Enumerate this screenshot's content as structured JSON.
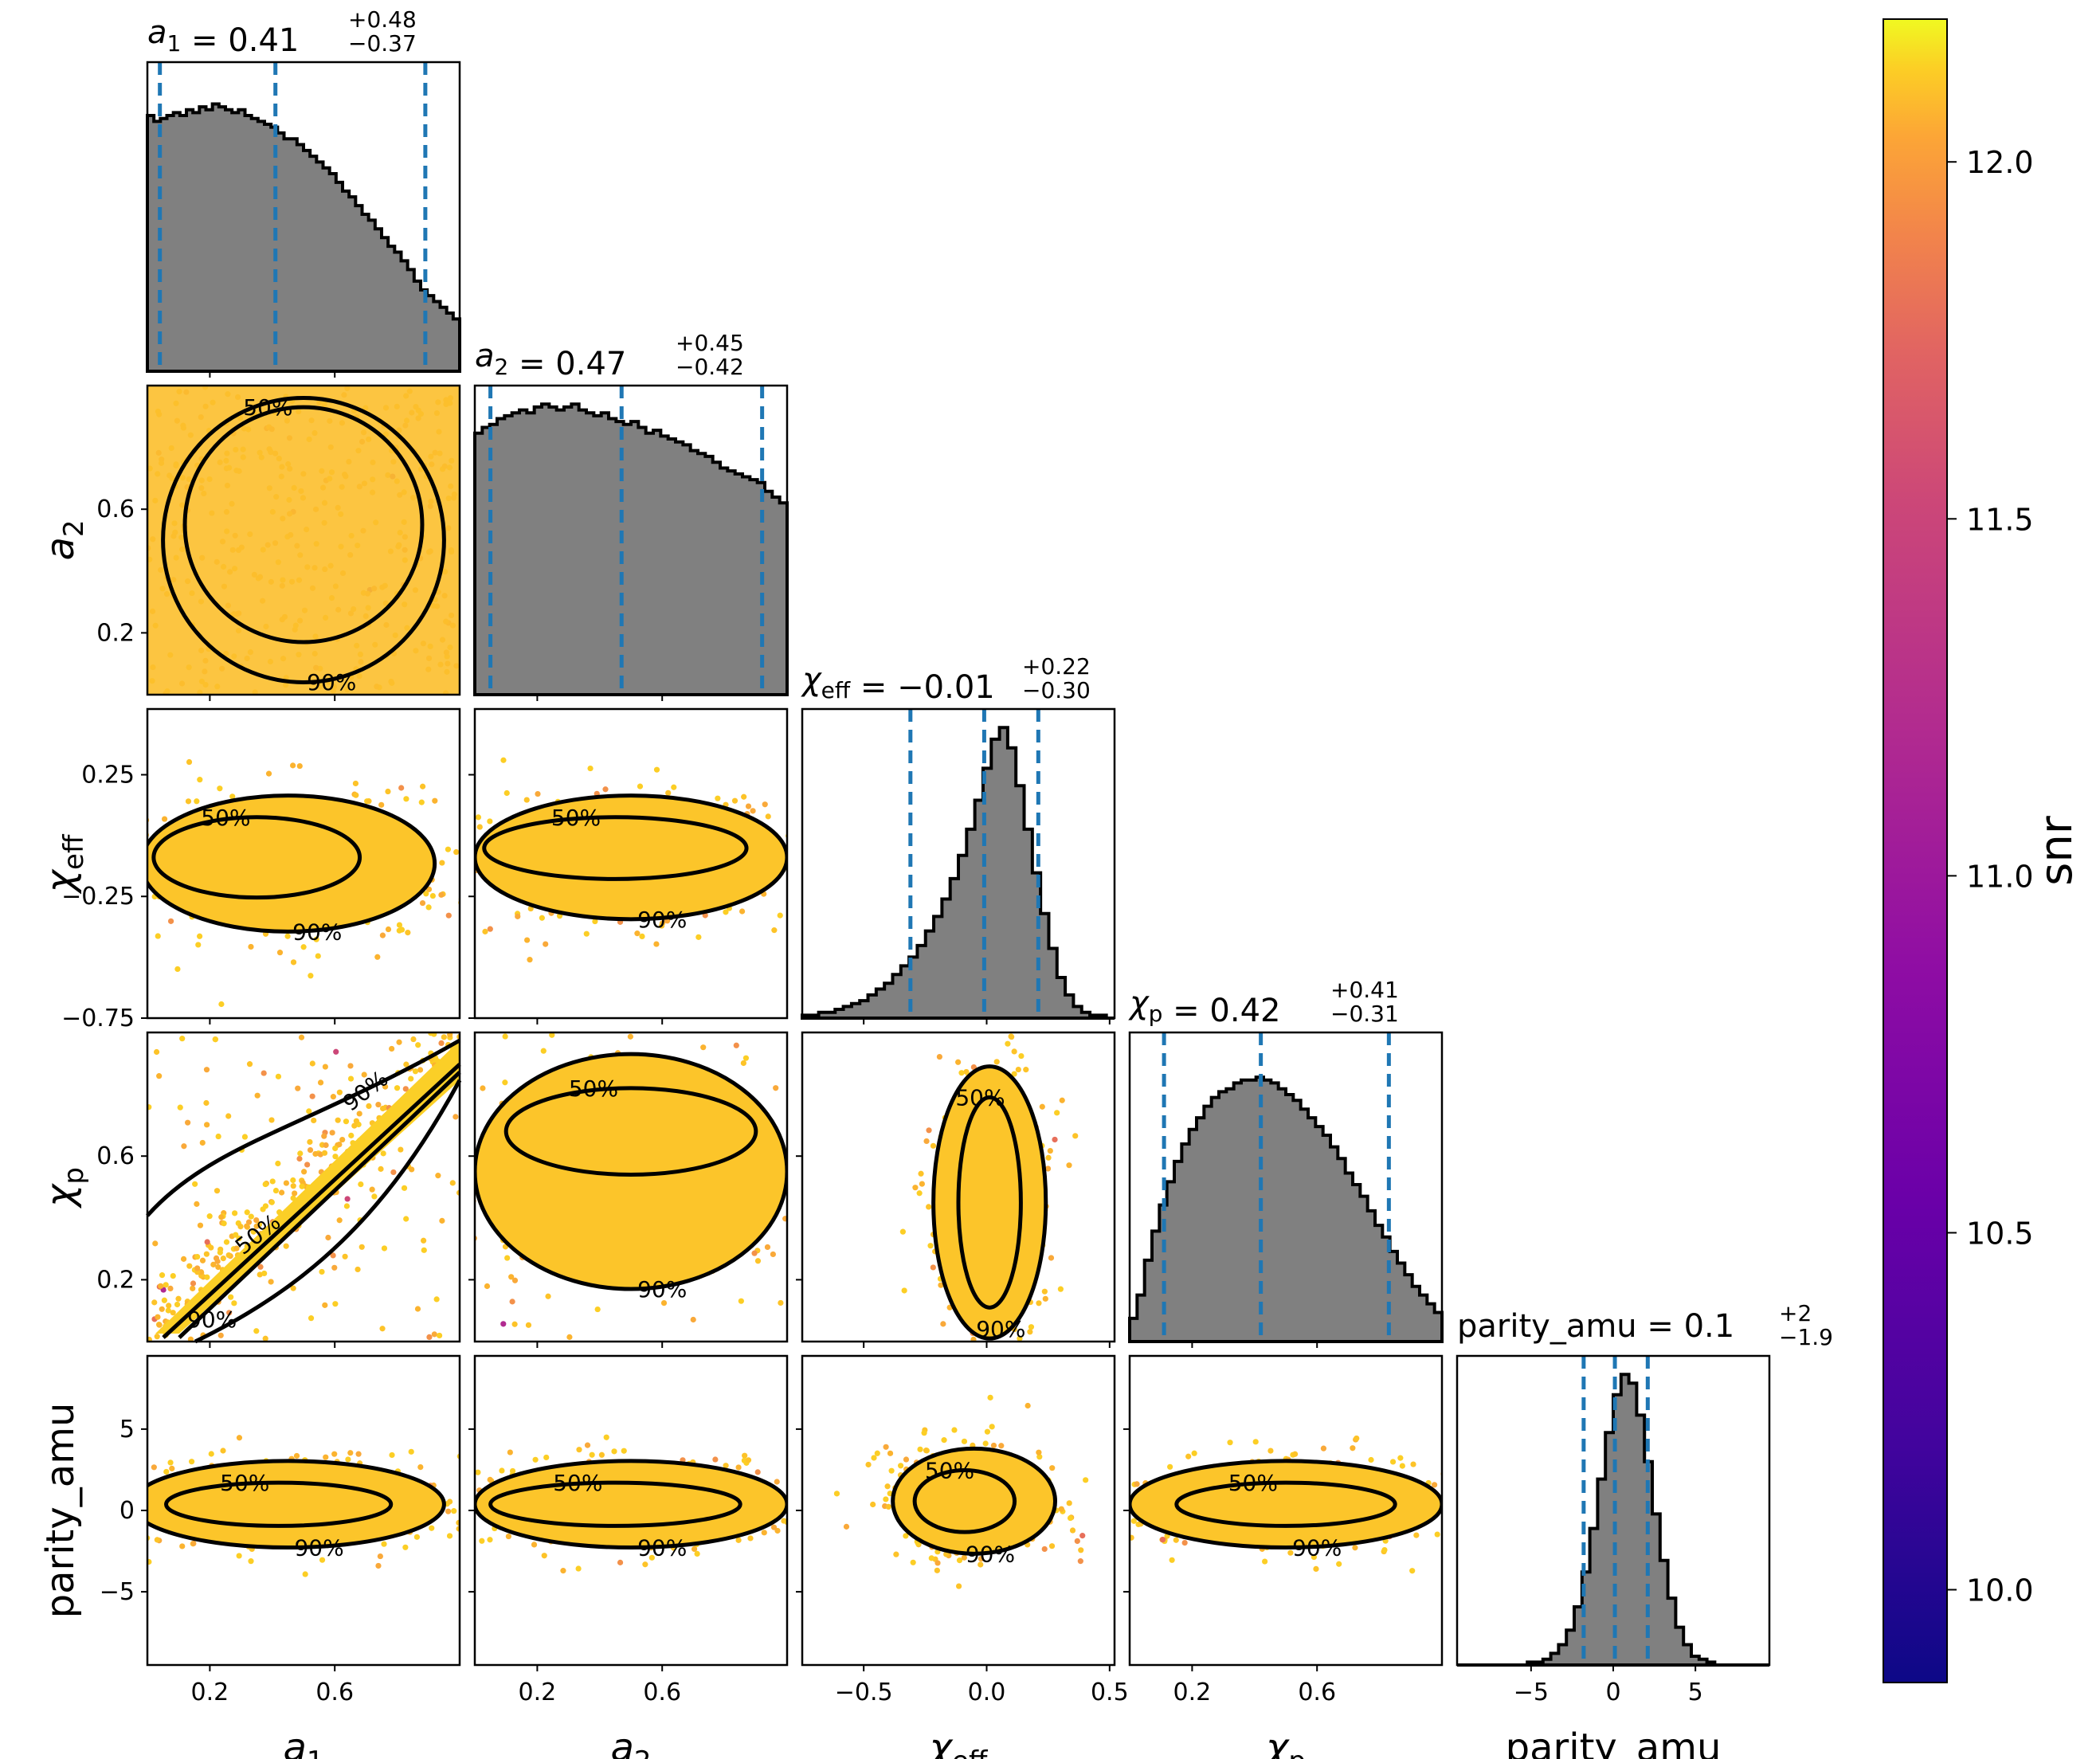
{
  "chart_data": {
    "type": "scatter",
    "kind": "corner-plot",
    "parameters": [
      {
        "id": "a1",
        "label": "a",
        "sub": "1",
        "italic": true,
        "median": 0.41,
        "plus": "+0.48",
        "minus": "−0.37",
        "median_text": "0.41",
        "range": [
          0.0,
          1.0
        ],
        "ticks": [
          0.2,
          0.6
        ],
        "tick_labels": [
          "0.2",
          "0.6"
        ],
        "quantiles": [
          0.04,
          0.41,
          0.89
        ]
      },
      {
        "id": "a2",
        "label": "a",
        "sub": "2",
        "italic": true,
        "median": 0.47,
        "plus": "+0.45",
        "minus": "−0.42",
        "median_text": "0.47",
        "range": [
          0.0,
          1.0
        ],
        "ticks": [
          0.2,
          0.6
        ],
        "tick_labels": [
          "0.2",
          "0.6"
        ],
        "quantiles": [
          0.05,
          0.47,
          0.92
        ]
      },
      {
        "id": "chi_eff",
        "label": "χ",
        "sub": "eff",
        "italic": true,
        "median": -0.01,
        "plus": "+0.22",
        "minus": "−0.30",
        "median_text": "−0.01",
        "range": [
          -0.75,
          0.52
        ],
        "ticks": [
          -0.5,
          0.0,
          0.5
        ],
        "tick_labels": [
          "−0.5",
          "0.0",
          "0.5"
        ],
        "y_ticks": [
          0.25,
          -0.25,
          -0.75
        ],
        "y_tick_labels": [
          "0.25",
          "−0.25",
          "−0.75"
        ],
        "quantiles": [
          -0.31,
          -0.01,
          0.21
        ]
      },
      {
        "id": "chi_p",
        "label": "χ",
        "sub": "p",
        "italic": true,
        "median": 0.42,
        "plus": "+0.41",
        "minus": "−0.31",
        "median_text": "0.42",
        "range": [
          0.0,
          1.0
        ],
        "ticks": [
          0.2,
          0.6
        ],
        "tick_labels": [
          "0.2",
          "0.6"
        ],
        "quantiles": [
          0.11,
          0.42,
          0.83
        ]
      },
      {
        "id": "parity_amu",
        "label": "parity_amu",
        "sub": "",
        "italic": false,
        "median": 0.1,
        "plus": "+2",
        "minus": "−1.9",
        "median_text": "0.1",
        "range": [
          -9.5,
          9.5
        ],
        "ticks": [
          -5,
          0,
          5
        ],
        "tick_labels": [
          "−5",
          "0",
          "5"
        ],
        "quantiles": [
          -1.8,
          0.1,
          2.1
        ]
      }
    ],
    "histogram_shapes": {
      "a1": [
        0.88,
        0.86,
        0.87,
        0.88,
        0.89,
        0.88,
        0.9,
        0.89,
        0.91,
        0.9,
        0.92,
        0.91,
        0.9,
        0.89,
        0.9,
        0.88,
        0.87,
        0.86,
        0.85,
        0.84,
        0.82,
        0.8,
        0.8,
        0.78,
        0.76,
        0.74,
        0.72,
        0.7,
        0.68,
        0.65,
        0.62,
        0.6,
        0.57,
        0.54,
        0.52,
        0.49,
        0.46,
        0.43,
        0.41,
        0.38,
        0.35,
        0.31,
        0.28,
        0.26,
        0.24,
        0.22,
        0.2,
        0.18
      ],
      "a2": [
        0.9,
        0.92,
        0.93,
        0.95,
        0.96,
        0.97,
        0.98,
        0.97,
        0.99,
        1.0,
        0.99,
        0.98,
        0.99,
        1.0,
        0.98,
        0.97,
        0.96,
        0.97,
        0.95,
        0.94,
        0.93,
        0.94,
        0.92,
        0.9,
        0.91,
        0.89,
        0.88,
        0.87,
        0.86,
        0.84,
        0.83,
        0.82,
        0.8,
        0.78,
        0.77,
        0.76,
        0.75,
        0.74,
        0.73,
        0.7,
        0.68,
        0.66
      ],
      "chi_eff": [
        0.01,
        0.01,
        0.02,
        0.02,
        0.03,
        0.04,
        0.05,
        0.06,
        0.08,
        0.1,
        0.12,
        0.15,
        0.18,
        0.21,
        0.25,
        0.3,
        0.35,
        0.41,
        0.48,
        0.56,
        0.65,
        0.75,
        0.86,
        0.96,
        1.0,
        0.93,
        0.8,
        0.65,
        0.5,
        0.36,
        0.24,
        0.14,
        0.08,
        0.04,
        0.02,
        0.01,
        0.01,
        0.0
      ],
      "chi_p": [
        0.08,
        0.16,
        0.28,
        0.38,
        0.47,
        0.55,
        0.62,
        0.68,
        0.73,
        0.77,
        0.81,
        0.84,
        0.86,
        0.87,
        0.89,
        0.9,
        0.9,
        0.91,
        0.9,
        0.89,
        0.87,
        0.85,
        0.83,
        0.8,
        0.77,
        0.74,
        0.71,
        0.67,
        0.63,
        0.58,
        0.54,
        0.5,
        0.45,
        0.4,
        0.36,
        0.31,
        0.27,
        0.23,
        0.19,
        0.16,
        0.13,
        0.1
      ],
      "parity_amu": [
        0.0,
        0.0,
        0.0,
        0.0,
        0.0,
        0.0,
        0.0,
        0.0,
        0.0,
        0.01,
        0.01,
        0.02,
        0.04,
        0.07,
        0.12,
        0.2,
        0.32,
        0.47,
        0.64,
        0.8,
        0.93,
        1.0,
        0.97,
        0.86,
        0.7,
        0.52,
        0.36,
        0.23,
        0.13,
        0.07,
        0.03,
        0.02,
        0.01,
        0.0,
        0.0,
        0.0,
        0.0,
        0.0,
        0.0,
        0.0
      ]
    },
    "contour_levels": [
      "50%",
      "90%"
    ],
    "colorbar": {
      "label": "snr",
      "range": [
        9.87,
        12.2
      ],
      "ticks": [
        10.0,
        10.5,
        11.0,
        11.5,
        12.0
      ],
      "tick_labels": [
        "10.0",
        "10.5",
        "11.0",
        "11.5",
        "12.0"
      ],
      "colormap": "plasma"
    },
    "colors": {
      "histogram_fill": "#808080",
      "histogram_edge": "#000000",
      "quantile_line": "#1f77b4",
      "contour": "#000000",
      "background": "#ffffff"
    }
  }
}
